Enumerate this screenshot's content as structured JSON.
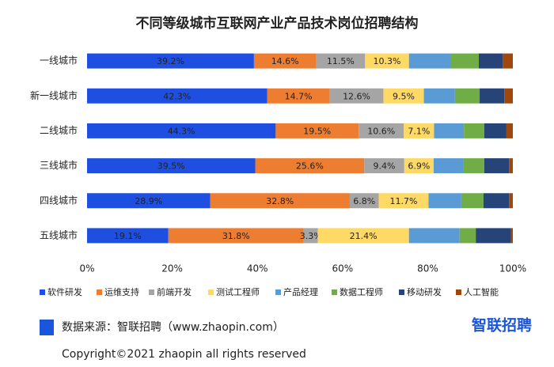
{
  "chart_data": {
    "type": "stacked_barh",
    "title": "不同等级城市互联网产业产品技术岗位招聘结构",
    "categories": [
      "一线城市",
      "新一线城市",
      "二线城市",
      "三线城市",
      "四线城市",
      "五线城市"
    ],
    "series": [
      {
        "name": "软件研发",
        "color": "#1f4fe0",
        "values": [
          39.2,
          42.3,
          44.3,
          39.5,
          28.9,
          19.1
        ],
        "value_labels": [
          "39.2%",
          "42.3%",
          "44.3%",
          "39.5%",
          "28.9%",
          "19.1%"
        ]
      },
      {
        "name": "运维支持",
        "color": "#ed7d31",
        "values": [
          14.6,
          14.7,
          19.5,
          25.6,
          32.8,
          31.8
        ],
        "value_labels": [
          "14.6%",
          "14.7%",
          "19.5%",
          "25.6%",
          "32.8%",
          "31.8%"
        ]
      },
      {
        "name": "前端开发",
        "color": "#a5a5a5",
        "values": [
          11.5,
          12.6,
          10.6,
          9.4,
          6.8,
          3.3
        ],
        "value_labels": [
          "11.5%",
          "12.6%",
          "10.6%",
          "9.4%",
          "6.8%",
          "3.3%"
        ]
      },
      {
        "name": "测试工程师",
        "color": "#ffd966",
        "values": [
          10.3,
          9.5,
          7.1,
          6.9,
          11.7,
          21.4
        ],
        "value_labels": [
          "10.3%",
          "9.5%",
          "7.1%",
          "6.9%",
          "11.7%",
          "21.4%"
        ]
      },
      {
        "name": "产品经理",
        "color": "#5b9bd5",
        "values": [
          9.9,
          7.3,
          7.0,
          6.9,
          7.7,
          11.9
        ]
      },
      {
        "name": "数据工程师",
        "color": "#70ad47",
        "values": [
          6.5,
          5.8,
          4.8,
          5.0,
          5.2,
          3.8
        ]
      },
      {
        "name": "移动研发",
        "color": "#264478",
        "values": [
          5.6,
          5.8,
          5.2,
          5.8,
          6.0,
          8.3
        ]
      },
      {
        "name": "人工智能",
        "color": "#9e480e",
        "values": [
          2.4,
          2.0,
          1.5,
          0.9,
          0.9,
          0.4
        ]
      }
    ],
    "xlim": [
      0,
      100
    ],
    "xticks": [
      {
        "value": 0,
        "label": "0%"
      },
      {
        "value": 20,
        "label": "20%"
      },
      {
        "value": 40,
        "label": "40%"
      },
      {
        "value": 60,
        "label": "60%"
      },
      {
        "value": 80,
        "label": "80%"
      },
      {
        "value": 100,
        "label": "100%"
      }
    ],
    "legend": "bottom",
    "source": "数据来源：智联招聘（www.zhaopin.com）",
    "logo": "智联招聘",
    "copyright": "Copyright©2021 zhaopin all rights reserved"
  }
}
